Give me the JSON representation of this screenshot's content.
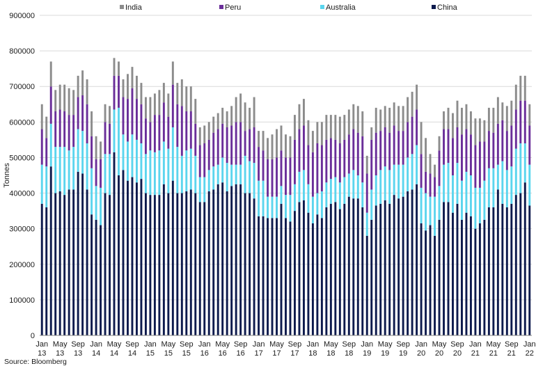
{
  "chart_data": {
    "type": "bar",
    "stacked": true,
    "ylabel": "Tonnes",
    "ylim": [
      0,
      900000
    ],
    "yticks": [
      0,
      100000,
      200000,
      300000,
      400000,
      500000,
      600000,
      700000,
      800000,
      900000
    ],
    "grid": true,
    "legend_position": "top",
    "x_tick_labels": [
      {
        "top": "Jan",
        "bottom": "13"
      },
      {
        "top": "May",
        "bottom": "13"
      },
      {
        "top": "Sep",
        "bottom": "13"
      },
      {
        "top": "Jan",
        "bottom": "14"
      },
      {
        "top": "May",
        "bottom": "14"
      },
      {
        "top": "Sep",
        "bottom": "14"
      },
      {
        "top": "Jan",
        "bottom": "15"
      },
      {
        "top": "May",
        "bottom": "15"
      },
      {
        "top": "Sep",
        "bottom": "15"
      },
      {
        "top": "Jan",
        "bottom": "16"
      },
      {
        "top": "May",
        "bottom": "16"
      },
      {
        "top": "Sep",
        "bottom": "16"
      },
      {
        "top": "Jan",
        "bottom": "17"
      },
      {
        "top": "May",
        "bottom": "17"
      },
      {
        "top": "Sep",
        "bottom": "17"
      },
      {
        "top": "Jan",
        "bottom": "18"
      },
      {
        "top": "May",
        "bottom": "18"
      },
      {
        "top": "Sep",
        "bottom": "18"
      },
      {
        "top": "Jan",
        "bottom": "19"
      },
      {
        "top": "May",
        "bottom": "19"
      },
      {
        "top": "Sep",
        "bottom": "19"
      },
      {
        "top": "Jan",
        "bottom": "20"
      },
      {
        "top": "May",
        "bottom": "20"
      },
      {
        "top": "Sep",
        "bottom": "20"
      },
      {
        "top": "Jan",
        "bottom": "21"
      },
      {
        "top": "May",
        "bottom": "21"
      },
      {
        "top": "Sep",
        "bottom": "21"
      },
      {
        "top": "Jan",
        "bottom": "22"
      }
    ],
    "stack_order": [
      "China",
      "Australia",
      "Peru",
      "India"
    ],
    "legend": [
      "India",
      "Peru",
      "Australia",
      "China"
    ],
    "series": [
      {
        "name": "China",
        "color": "#0d1a4d",
        "values": [
          370000,
          360000,
          475000,
          400000,
          405000,
          395000,
          410000,
          410000,
          460000,
          455000,
          410000,
          340000,
          325000,
          310000,
          400000,
          395000,
          515000,
          450000,
          465000,
          435000,
          445000,
          430000,
          440000,
          400000,
          395000,
          395000,
          395000,
          425000,
          400000,
          435000,
          400000,
          400000,
          405000,
          410000,
          400000,
          375000,
          375000,
          405000,
          410000,
          425000,
          430000,
          405000,
          420000,
          425000,
          425000,
          400000,
          400000,
          385000,
          335000,
          335000,
          330000,
          330000,
          330000,
          370000,
          330000,
          320000,
          350000,
          375000,
          380000,
          345000,
          315000,
          340000,
          330000,
          360000,
          370000,
          375000,
          355000,
          370000,
          390000,
          385000,
          385000,
          360000,
          280000,
          325000,
          365000,
          370000,
          380000,
          370000,
          395000,
          385000,
          390000,
          405000,
          410000,
          425000,
          315000,
          295000,
          310000,
          280000,
          325000,
          375000,
          375000,
          345000,
          370000,
          325000,
          345000,
          335000,
          300000,
          315000,
          325000,
          360000,
          360000,
          410000,
          370000,
          360000,
          370000,
          395000,
          400000,
          430000,
          365000
        ]
      },
      {
        "name": "Australia",
        "color": "#5bd5ee",
        "values": [
          110000,
          115000,
          120000,
          130000,
          125000,
          135000,
          110000,
          120000,
          120000,
          120000,
          130000,
          130000,
          95000,
          105000,
          110000,
          115000,
          120000,
          190000,
          100000,
          110000,
          120000,
          120000,
          100000,
          110000,
          125000,
          120000,
          125000,
          120000,
          125000,
          150000,
          130000,
          105000,
          115000,
          115000,
          105000,
          70000,
          70000,
          60000,
          65000,
          55000,
          70000,
          80000,
          60000,
          55000,
          55000,
          105000,
          90000,
          100000,
          100000,
          100000,
          60000,
          60000,
          60000,
          50000,
          65000,
          75000,
          75000,
          85000,
          85000,
          80000,
          75000,
          60000,
          75000,
          70000,
          70000,
          70000,
          75000,
          75000,
          65000,
          80000,
          65000,
          70000,
          65000,
          85000,
          85000,
          95000,
          95000,
          95000,
          85000,
          95000,
          90000,
          95000,
          100000,
          110000,
          100000,
          105000,
          80000,
          110000,
          95000,
          105000,
          110000,
          105000,
          115000,
          110000,
          115000,
          115000,
          115000,
          100000,
          110000,
          110000,
          110000,
          70000,
          120000,
          105000,
          105000,
          130000,
          140000,
          110000,
          115000
        ]
      },
      {
        "name": "Peru",
        "color": "#6a2e99",
        "values": [
          100000,
          80000,
          105000,
          100000,
          105000,
          100000,
          100000,
          90000,
          90000,
          100000,
          110000,
          90000,
          75000,
          80000,
          90000,
          85000,
          95000,
          90000,
          105000,
          120000,
          130000,
          115000,
          110000,
          100000,
          80000,
          105000,
          100000,
          110000,
          90000,
          120000,
          120000,
          140000,
          110000,
          105000,
          90000,
          90000,
          95000,
          85000,
          95000,
          100000,
          95000,
          100000,
          110000,
          120000,
          120000,
          70000,
          90000,
          100000,
          95000,
          85000,
          105000,
          105000,
          110000,
          100000,
          105000,
          105000,
          125000,
          120000,
          125000,
          110000,
          125000,
          140000,
          130000,
          120000,
          115000,
          105000,
          110000,
          105000,
          110000,
          115000,
          120000,
          130000,
          110000,
          140000,
          120000,
          110000,
          110000,
          105000,
          110000,
          95000,
          95000,
          100000,
          105000,
          100000,
          95000,
          60000,
          65000,
          55000,
          100000,
          100000,
          95000,
          105000,
          100000,
          130000,
          120000,
          115000,
          120000,
          130000,
          110000,
          105000,
          100000,
          115000,
          115000,
          110000,
          115000,
          110000,
          120000,
          120000,
          110000
        ]
      },
      {
        "name": "India",
        "color": "#8c8c8c",
        "values": [
          70000,
          60000,
          70000,
          60000,
          70000,
          75000,
          75000,
          70000,
          60000,
          70000,
          70000,
          70000,
          65000,
          50000,
          50000,
          50000,
          50000,
          40000,
          50000,
          70000,
          60000,
          65000,
          60000,
          60000,
          70000,
          60000,
          70000,
          55000,
          65000,
          65000,
          60000,
          75000,
          70000,
          70000,
          70000,
          50000,
          50000,
          50000,
          45000,
          45000,
          45000,
          45000,
          55000,
          70000,
          80000,
          80000,
          60000,
          85000,
          45000,
          55000,
          60000,
          70000,
          80000,
          70000,
          65000,
          60000,
          70000,
          70000,
          75000,
          70000,
          60000,
          60000,
          65000,
          70000,
          65000,
          70000,
          75000,
          70000,
          70000,
          70000,
          75000,
          70000,
          50000,
          35000,
          70000,
          60000,
          60000,
          70000,
          65000,
          70000,
          70000,
          70000,
          70000,
          70000,
          90000,
          95000,
          55000,
          35000,
          40000,
          50000,
          60000,
          70000,
          75000,
          75000,
          70000,
          65000,
          75000,
          65000,
          60000,
          65000,
          70000,
          75000,
          50000,
          70000,
          70000,
          70000,
          70000,
          70000,
          60000
        ]
      }
    ]
  },
  "source_text": "Source: Bloomberg"
}
